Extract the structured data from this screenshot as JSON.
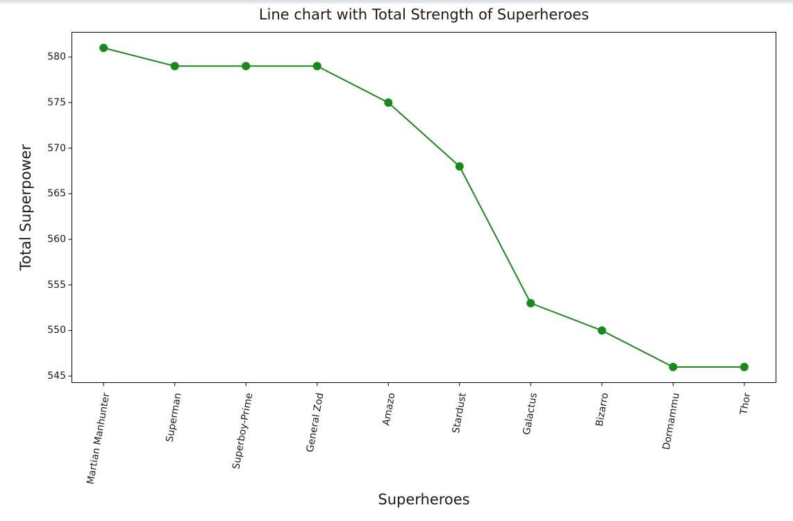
{
  "chart_data": {
    "type": "line",
    "title": "Line chart with Total Strength of Superheroes",
    "xlabel": "Superheroes",
    "ylabel": "Total Superpower",
    "categories": [
      "Martian Manhunter",
      "Superman",
      "Superboy-Prime",
      "General Zod",
      "Amazo",
      "Stardust",
      "Galactus",
      "Bizarro",
      "Dormammu",
      "Thor"
    ],
    "values": [
      581,
      579,
      579,
      579,
      575,
      568,
      553,
      550,
      546,
      546
    ],
    "yticks": [
      545,
      550,
      555,
      560,
      565,
      570,
      575,
      580
    ],
    "ylim": [
      544.25,
      582.75
    ],
    "xlim": [
      -0.45,
      9.45
    ],
    "grid": false,
    "legend": false,
    "line_color": "#178a17",
    "marker": "circle",
    "marker_color": "#178a17",
    "axis_color": "#000000",
    "background_color": "#ffffff"
  }
}
